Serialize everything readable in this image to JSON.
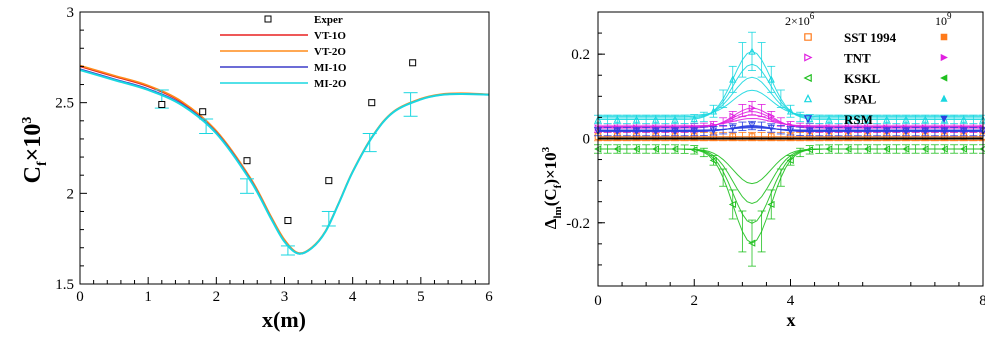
{
  "chart_data": [
    {
      "type": "line",
      "ylabel_main": "C",
      "ylabel_sub": "f",
      "ylabel_times": "×10",
      "ylabel_sup": "3",
      "xlabel": "x(m)",
      "xlim": [
        0,
        6
      ],
      "ylim": [
        1.5,
        3
      ],
      "xticks": [
        "0",
        "1",
        "2",
        "3",
        "4",
        "5",
        "6"
      ],
      "yticks": [
        "1.5",
        "2",
        "2.5",
        "3"
      ],
      "legend_position": "top-center",
      "series": [
        {
          "name": "VT-1O",
          "color": "#e82020",
          "x": [
            0,
            0.5,
            1,
            1.5,
            2,
            2.5,
            2.8,
            3,
            3.2,
            3.4,
            3.6,
            3.8,
            4,
            4.3,
            4.6,
            5,
            5.3,
            5.6,
            6
          ],
          "y": [
            2.7,
            2.645,
            2.59,
            2.5,
            2.34,
            2.08,
            1.87,
            1.74,
            1.67,
            1.7,
            1.79,
            1.95,
            2.12,
            2.32,
            2.45,
            2.52,
            2.545,
            2.55,
            2.545
          ]
        },
        {
          "name": "VT-2O",
          "color": "#ff8c1a",
          "x": [
            0,
            0.5,
            1,
            1.5,
            2,
            2.5,
            2.8,
            3,
            3.2,
            3.4,
            3.6,
            3.8,
            4,
            4.3,
            4.6,
            5,
            5.3,
            5.6,
            6
          ],
          "y": [
            2.705,
            2.65,
            2.595,
            2.505,
            2.345,
            2.085,
            1.875,
            1.745,
            1.672,
            1.702,
            1.792,
            1.952,
            2.122,
            2.322,
            2.452,
            2.522,
            2.547,
            2.552,
            2.546
          ]
        },
        {
          "name": "MI-1O",
          "color": "#3c3cc8",
          "x": [
            0,
            0.5,
            1,
            1.5,
            2,
            2.5,
            2.8,
            3,
            3.2,
            3.4,
            3.6,
            3.8,
            4,
            4.3,
            4.6,
            5,
            5.3,
            5.6,
            6
          ],
          "y": [
            2.685,
            2.63,
            2.575,
            2.49,
            2.335,
            2.075,
            1.865,
            1.735,
            1.668,
            1.698,
            1.788,
            1.948,
            2.118,
            2.318,
            2.448,
            2.518,
            2.543,
            2.548,
            2.544
          ]
        },
        {
          "name": "MI-2O",
          "color": "#1ad7e0",
          "x": [
            0,
            0.5,
            1,
            1.5,
            2,
            2.5,
            2.8,
            3,
            3.2,
            3.4,
            3.6,
            3.8,
            4,
            4.3,
            4.6,
            5,
            5.3,
            5.6,
            6
          ],
          "y": [
            2.68,
            2.625,
            2.57,
            2.485,
            2.33,
            2.07,
            1.862,
            1.733,
            1.668,
            1.698,
            1.788,
            1.948,
            2.118,
            2.318,
            2.448,
            2.518,
            2.543,
            2.548,
            2.544
          ]
        }
      ],
      "errorbars": {
        "x": [
          1.2,
          1.85,
          2.45,
          3.05,
          3.65,
          4.25,
          4.85
        ],
        "y": [
          2.52,
          2.37,
          2.04,
          1.685,
          1.86,
          2.28,
          2.49
        ],
        "err": [
          0.05,
          0.04,
          0.04,
          0.025,
          0.04,
          0.05,
          0.065
        ],
        "color": "#1ad7e0"
      },
      "experiment": {
        "name": "Exper",
        "x": [
          1.2,
          1.8,
          2.45,
          3.05,
          3.65,
          4.28,
          4.88
        ],
        "y": [
          2.49,
          2.45,
          2.18,
          1.85,
          2.07,
          2.5,
          2.72
        ]
      }
    },
    {
      "type": "line",
      "ylabel_main": "Δ",
      "ylabel_sub1": "lm",
      "ylabel_mid": "(C",
      "ylabel_sub2": "f",
      "ylabel_tail": ")×10",
      "ylabel_sup": "3",
      "xlabel": "x",
      "xlim": [
        0,
        8
      ],
      "ylim": [
        -0.35,
        0.3
      ],
      "xticks": [
        "0",
        "2",
        "4",
        "8"
      ],
      "yticks": [
        "-0.2",
        "0",
        "0.2"
      ],
      "legend_position": "top-right",
      "legend_header_left": "2×10",
      "legend_header_left_sup": "6",
      "legend_header_right": "10",
      "legend_header_right_sup": "9",
      "legend_entries": [
        "SST 1994",
        "TNT",
        "KSKL",
        "SPAL",
        "RSM"
      ],
      "series": [
        {
          "name": "SST 1994",
          "color": "#ff7a1a",
          "marker": "square",
          "kind": "flat",
          "amp": 0.012,
          "base": 0.005
        },
        {
          "name": "TNT",
          "color": "#e020e0",
          "marker": "tri-right",
          "kind": "bump",
          "amp": 0.05,
          "base": 0.03
        },
        {
          "name": "KSKL",
          "color": "#20c020",
          "marker": "tri-left",
          "kind": "dip",
          "amp": -0.26,
          "base": -0.025
        },
        {
          "name": "SPAL",
          "color": "#1ad7e0",
          "marker": "tri-up",
          "kind": "bump",
          "amp": 0.17,
          "base": 0.055
        },
        {
          "name": "RSM",
          "color": "#2b3fe0",
          "marker": "tri-down",
          "kind": "bump",
          "amp": 0.015,
          "base": 0.02
        }
      ]
    }
  ]
}
